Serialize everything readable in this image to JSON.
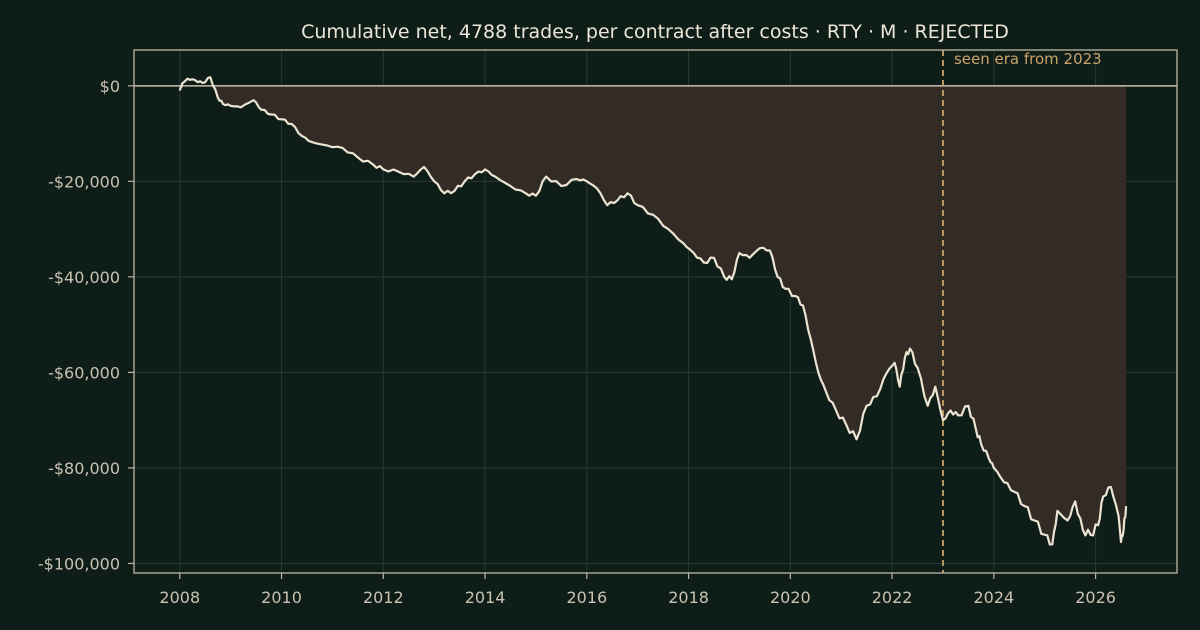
{
  "chart_data": {
    "type": "area",
    "title": "Cumulative net, 4788 trades, per contract after costs  ·  RTY · M · REJECTED",
    "xlabel": "",
    "ylabel": "",
    "xlim": [
      2007.1,
      2027.6
    ],
    "ylim": [
      -102000,
      7500
    ],
    "x_ticks": [
      2008,
      2010,
      2012,
      2014,
      2016,
      2018,
      2020,
      2022,
      2024,
      2026
    ],
    "x_tick_labels": [
      "2008",
      "2010",
      "2012",
      "2014",
      "2016",
      "2018",
      "2020",
      "2022",
      "2024",
      "2026"
    ],
    "y_ticks": [
      0,
      -20000,
      -40000,
      -60000,
      -80000,
      -100000
    ],
    "y_tick_labels": [
      "$0",
      "-$20,000",
      "-$40,000",
      "-$60,000",
      "-$80,000",
      "-$100,000"
    ],
    "grid": true,
    "zero_line": true,
    "drawdown_fill": true,
    "annotation": {
      "x": 2023.0,
      "text": "seen era from 2023",
      "style": "dashed vertical line"
    },
    "colors": {
      "background": "#0f1d19",
      "line": "#ece4d2",
      "fill": "#332c26",
      "annotation": "#c9a46a",
      "axis": "#bdb6a6",
      "grid": "#2a3833"
    },
    "series": [
      {
        "x": [
          2008.0,
          2008.05,
          2008.15,
          2008.3,
          2008.45,
          2008.6,
          2008.75,
          2008.85,
          2009.0,
          2009.2,
          2009.45,
          2009.6,
          2009.8,
          2010.0,
          2010.2,
          2010.4,
          2010.6,
          2010.9,
          2011.2,
          2011.5,
          2011.8,
          2012.0,
          2012.3,
          2012.6,
          2012.8,
          2013.0,
          2013.2,
          2013.4,
          2013.6,
          2013.8,
          2014.0,
          2014.2,
          2014.5,
          2014.8,
          2015.0,
          2015.2,
          2015.5,
          2015.8,
          2016.0,
          2016.2,
          2016.4,
          2016.6,
          2016.8,
          2017.0,
          2017.3,
          2017.6,
          2017.9,
          2018.1,
          2018.3,
          2018.5,
          2018.7,
          2018.85,
          2019.0,
          2019.2,
          2019.4,
          2019.6,
          2019.75,
          2019.9,
          2020.1,
          2020.25,
          2020.4,
          2020.55,
          2020.7,
          2020.9,
          2021.1,
          2021.3,
          2021.5,
          2021.7,
          2021.9,
          2022.05,
          2022.15,
          2022.25,
          2022.35,
          2022.5,
          2022.7,
          2022.85,
          2023.0,
          2023.15,
          2023.3,
          2023.5,
          2023.65,
          2023.75,
          2023.9,
          2024.0,
          2024.2,
          2024.4,
          2024.6,
          2024.8,
          2025.0,
          2025.15,
          2025.25,
          2025.45,
          2025.6,
          2025.75,
          2025.9,
          2026.05,
          2026.15,
          2026.3,
          2026.45,
          2026.5,
          2026.55,
          2026.6
        ],
        "values": [
          -1000,
          500,
          1500,
          1200,
          600,
          1800,
          -2500,
          -3800,
          -4200,
          -4500,
          -3000,
          -5000,
          -6000,
          -7000,
          -8000,
          -10500,
          -11800,
          -12500,
          -13000,
          -15000,
          -16500,
          -17500,
          -18000,
          -19000,
          -17000,
          -20000,
          -22500,
          -22000,
          -20000,
          -18500,
          -17500,
          -19000,
          -21000,
          -22500,
          -23000,
          -19000,
          -21000,
          -19500,
          -20000,
          -21500,
          -25000,
          -24000,
          -22500,
          -25000,
          -27000,
          -30000,
          -33000,
          -35000,
          -37000,
          -36000,
          -40000,
          -40500,
          -35000,
          -36000,
          -34000,
          -34500,
          -40000,
          -42500,
          -44000,
          -46000,
          -53000,
          -60000,
          -64000,
          -68000,
          -71000,
          -74000,
          -67000,
          -65000,
          -60000,
          -58000,
          -63000,
          -57000,
          -55000,
          -59000,
          -67000,
          -63000,
          -70000,
          -68000,
          -69000,
          -67000,
          -72000,
          -75000,
          -78000,
          -80000,
          -83000,
          -85000,
          -88000,
          -91000,
          -94000,
          -96000,
          -89000,
          -91000,
          -87000,
          -93000,
          -94000,
          -92000,
          -86000,
          -84000,
          -90000,
          -95500,
          -93000,
          -88000
        ]
      }
    ]
  }
}
